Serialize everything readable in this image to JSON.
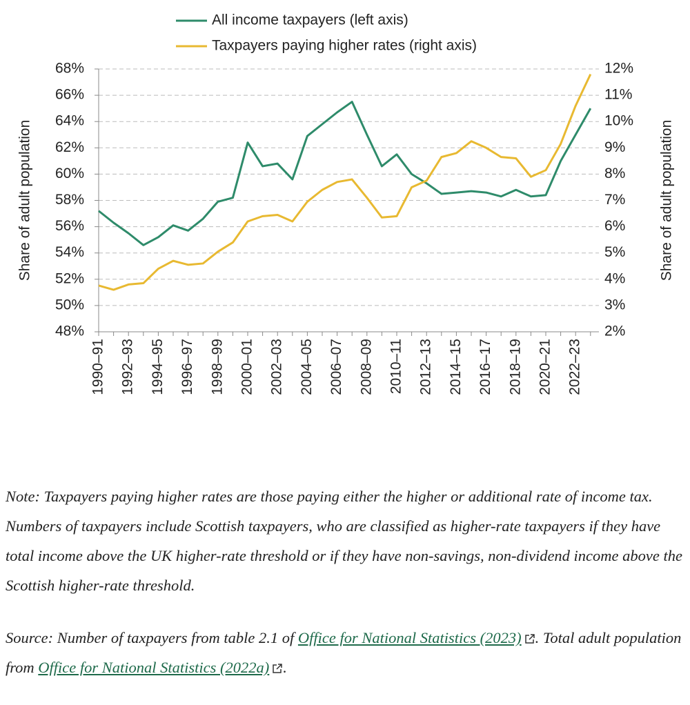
{
  "chart_data": {
    "type": "line",
    "ylabel": "Share of adult population",
    "y2label": "Share of adult population",
    "categories": [
      "1990–91",
      null,
      "1992–93",
      null,
      "1994–95",
      null,
      "1996–97",
      null,
      "1998–99",
      null,
      "2000–01",
      null,
      "2002–03",
      null,
      "2004–05",
      null,
      "2006–07",
      null,
      "2008–09",
      null,
      "2010–11",
      null,
      "2012–13",
      null,
      "2014–15",
      null,
      "2016–17",
      null,
      "2018–19",
      null,
      "2020–21",
      null,
      "2022–23",
      null
    ],
    "series": [
      {
        "name": "All income taxpayers (left axis)",
        "color": "#2e8b6a",
        "values": [
          57.2,
          56.3,
          55.5,
          54.6,
          55.2,
          56.1,
          55.7,
          56.6,
          57.9,
          58.2,
          62.4,
          60.6,
          60.8,
          59.6,
          62.9,
          63.8,
          64.7,
          65.5,
          63.0,
          60.6,
          61.5,
          60.0,
          59.3,
          58.5,
          58.6,
          58.7,
          58.6,
          58.3,
          58.8,
          58.3,
          58.4,
          61.0,
          63.0,
          65.0
        ]
      },
      {
        "name": "Taxpayers paying higher rates (right axis)",
        "color": "#e8b931",
        "axis": "y2",
        "values": [
          3.76,
          3.6,
          3.8,
          3.85,
          4.4,
          4.7,
          4.55,
          4.6,
          5.05,
          5.4,
          6.2,
          6.4,
          6.45,
          6.2,
          6.95,
          7.4,
          7.7,
          7.8,
          7.1,
          6.35,
          6.4,
          7.5,
          7.75,
          8.65,
          8.8,
          9.25,
          9.0,
          8.65,
          8.6,
          7.9,
          8.15,
          9.15,
          10.6,
          11.8
        ]
      }
    ],
    "ylim": [
      48,
      68
    ],
    "yticks": [
      {
        "value": 48,
        "label": "48%"
      },
      {
        "value": 50,
        "label": "50%"
      },
      {
        "value": 52,
        "label": "52%"
      },
      {
        "value": 54,
        "label": "54%"
      },
      {
        "value": 56,
        "label": "56%"
      },
      {
        "value": 58,
        "label": "58%"
      },
      {
        "value": 60,
        "label": "60%"
      },
      {
        "value": 62,
        "label": "62%"
      },
      {
        "value": 64,
        "label": "64%"
      },
      {
        "value": 66,
        "label": "66%"
      },
      {
        "value": 68,
        "label": "68%"
      }
    ],
    "y2lim": [
      2,
      12
    ],
    "y2ticks": [
      {
        "value": 2,
        "label": "2%"
      },
      {
        "value": 3,
        "label": "3%"
      },
      {
        "value": 4,
        "label": "4%"
      },
      {
        "value": 5,
        "label": "5%"
      },
      {
        "value": 6,
        "label": "6%"
      },
      {
        "value": 7,
        "label": "7%"
      },
      {
        "value": 8,
        "label": "8%"
      },
      {
        "value": 9,
        "label": "9%"
      },
      {
        "value": 10,
        "label": "10%"
      },
      {
        "value": 11,
        "label": "11%"
      },
      {
        "value": 12,
        "label": "12%"
      }
    ],
    "grid": true
  },
  "notes": {
    "note": "Note: Taxpayers paying higher rates are those paying either the higher or additional rate of income tax. Numbers of taxpayers include Scottish taxpayers, who are classified as higher-rate taxpayers if they have total income above the UK higher-rate threshold or if they have non-savings, non-dividend income above the Scottish higher-rate threshold.",
    "source": {
      "prefix": "Source: Number of taxpayers from table 2.1 of ",
      "link1": "Office for National Statistics (2023)",
      "middle": ". Total adult population from ",
      "link2": "Office for National Statistics (2022a)",
      "suffix": "."
    }
  }
}
